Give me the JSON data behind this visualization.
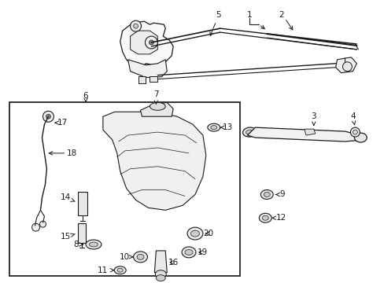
{
  "bg_color": "#ffffff",
  "lc": "#1a1a1a",
  "lw": 0.8,
  "fig_w": 4.89,
  "fig_h": 3.6,
  "dpi": 100
}
